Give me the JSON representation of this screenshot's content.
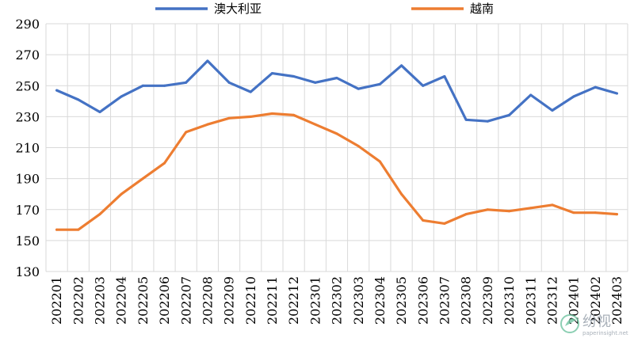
{
  "chart_data": {
    "type": "line",
    "title": "",
    "xlabel": "",
    "ylabel": "",
    "ylim": [
      130,
      290
    ],
    "yticks": [
      130,
      150,
      170,
      190,
      210,
      230,
      250,
      270,
      290
    ],
    "grid": true,
    "legend_position": "top",
    "categories": [
      "202201",
      "202202",
      "202203",
      "202204",
      "202205",
      "202206",
      "202207",
      "202208",
      "202209",
      "202210",
      "202211",
      "202212",
      "202301",
      "202302",
      "202303",
      "202304",
      "202305",
      "202306",
      "202307",
      "202308",
      "202309",
      "202310",
      "202311",
      "202312",
      "202401",
      "202402",
      "202403"
    ],
    "series": [
      {
        "name": "澳大利亚",
        "color": "#4472c4",
        "values": [
          247,
          241,
          233,
          243,
          250,
          250,
          252,
          266,
          252,
          246,
          258,
          256,
          252,
          255,
          248,
          251,
          263,
          250,
          256,
          228,
          227,
          231,
          244,
          234,
          243,
          249,
          245
        ]
      },
      {
        "name": "越南",
        "color": "#ed7d31",
        "values": [
          157,
          157,
          167,
          180,
          190,
          200,
          220,
          225,
          229,
          230,
          232,
          231,
          225,
          219,
          211,
          201,
          180,
          163,
          161,
          167,
          170,
          169,
          171,
          173,
          168,
          168,
          167
        ]
      }
    ]
  },
  "watermark": {
    "text": "纷视",
    "url": "paperinsight.net"
  }
}
